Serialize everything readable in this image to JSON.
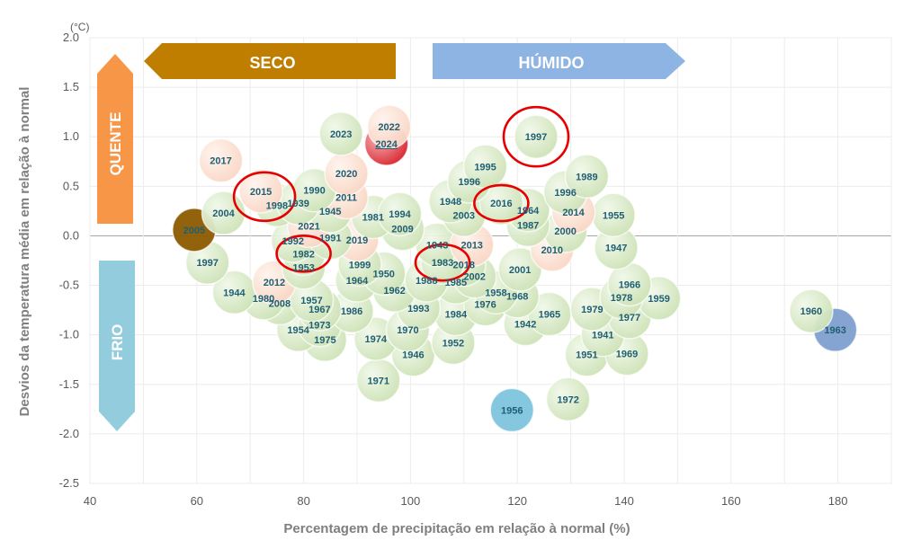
{
  "chart_data": {
    "type": "scatter",
    "title": "",
    "xlabel": "Percentagem de precipitação em relação à normal (%)",
    "ylabel": "Desvios da temperatura média em relação à normal",
    "y_unit": "(°C)",
    "xlim": [
      40,
      190
    ],
    "ylim": [
      -2.5,
      2.0
    ],
    "x_ticks": [
      40,
      60,
      80,
      100,
      120,
      140,
      160,
      180
    ],
    "y_ticks": [
      "2.0",
      "1.5",
      "1.0",
      "0.5",
      "0.0",
      "-0.5",
      "-1.0",
      "-1.5",
      "-2.0",
      "-2.5"
    ],
    "grid": true,
    "quadrant_labels": {
      "dry": "SECO",
      "wet": "HÚMIDO",
      "hot": "QUENTE",
      "cold": "FRIO"
    },
    "colors": {
      "default": "#d4e7c0",
      "warm": "#fbdccd",
      "highlight_2024": "#e4353d",
      "year_2005": "#8c5a00",
      "year_1956": "#7ec4dc",
      "year_1963": "#7f9fcf",
      "circle_mark": "#e60000",
      "dry_arrow": "#bf7e00",
      "wet_arrow": "#8db4e2",
      "hot_arrow": "#f79646",
      "cold_arrow": "#93cddd"
    },
    "points": [
      {
        "year": "2022",
        "x": 96,
        "y": 1.1,
        "style": "warm"
      },
      {
        "year": "2024",
        "x": 95.5,
        "y": 0.93,
        "style": "highlight"
      },
      {
        "year": "2023",
        "x": 87,
        "y": 1.03,
        "style": "default"
      },
      {
        "year": "1997",
        "x": 123.5,
        "y": 1.0,
        "style": "default",
        "circled": true
      },
      {
        "year": "2017",
        "x": 64.5,
        "y": 0.76,
        "style": "warm"
      },
      {
        "year": "1995",
        "x": 114,
        "y": 0.7,
        "style": "default"
      },
      {
        "year": "1989",
        "x": 133,
        "y": 0.6,
        "style": "default"
      },
      {
        "year": "2020",
        "x": 88,
        "y": 0.63,
        "style": "warm"
      },
      {
        "year": "1996",
        "x": 111,
        "y": 0.55,
        "style": "default"
      },
      {
        "year": "1996",
        "x": 129,
        "y": 0.44,
        "style": "default"
      },
      {
        "year": "1990",
        "x": 82,
        "y": 0.46,
        "style": "default"
      },
      {
        "year": "2015",
        "x": 72,
        "y": 0.45,
        "style": "warm",
        "circled": true
      },
      {
        "year": "2011",
        "x": 88,
        "y": 0.39,
        "style": "warm"
      },
      {
        "year": "1998",
        "x": 75,
        "y": 0.31,
        "style": "default"
      },
      {
        "year": "1939",
        "x": 79,
        "y": 0.33,
        "style": "default"
      },
      {
        "year": "1948",
        "x": 107.5,
        "y": 0.35,
        "style": "default"
      },
      {
        "year": "2016",
        "x": 117,
        "y": 0.33,
        "style": "default",
        "circled": true
      },
      {
        "year": "1945",
        "x": 85,
        "y": 0.25,
        "style": "default"
      },
      {
        "year": "2004",
        "x": 65,
        "y": 0.23,
        "style": "default"
      },
      {
        "year": "1964",
        "x": 122,
        "y": 0.26,
        "style": "default"
      },
      {
        "year": "2014",
        "x": 130.5,
        "y": 0.24,
        "style": "warm"
      },
      {
        "year": "1955",
        "x": 138,
        "y": 0.21,
        "style": "default"
      },
      {
        "year": "2003",
        "x": 110,
        "y": 0.21,
        "style": "default"
      },
      {
        "year": "1994",
        "x": 98,
        "y": 0.22,
        "style": "default"
      },
      {
        "year": "1981",
        "x": 93,
        "y": 0.19,
        "style": "default"
      },
      {
        "year": "1987",
        "x": 122,
        "y": 0.11,
        "style": "default"
      },
      {
        "year": "2021",
        "x": 81,
        "y": 0.1,
        "style": "warm"
      },
      {
        "year": "2009",
        "x": 98.5,
        "y": 0.07,
        "style": "default"
      },
      {
        "year": "2000",
        "x": 129,
        "y": 0.05,
        "style": "default"
      },
      {
        "year": "2005",
        "x": 59.5,
        "y": 0.06,
        "style": "year_2005"
      },
      {
        "year": "1991",
        "x": 85,
        "y": -0.02,
        "style": "default"
      },
      {
        "year": "2019",
        "x": 90,
        "y": -0.04,
        "style": "warm"
      },
      {
        "year": "1992",
        "x": 78,
        "y": -0.05,
        "style": "default"
      },
      {
        "year": "1943",
        "x": 105,
        "y": -0.09,
        "style": "default"
      },
      {
        "year": "2013",
        "x": 111.5,
        "y": -0.09,
        "style": "warm"
      },
      {
        "year": "1947",
        "x": 138.5,
        "y": -0.12,
        "style": "default"
      },
      {
        "year": "2010",
        "x": 126.5,
        "y": -0.14,
        "style": "warm"
      },
      {
        "year": "1982",
        "x": 80,
        "y": -0.18,
        "style": "default",
        "circled": true
      },
      {
        "year": "1997",
        "x": 62,
        "y": -0.27,
        "style": "default"
      },
      {
        "year": "1983",
        "x": 106,
        "y": -0.27,
        "style": "default",
        "circled": true
      },
      {
        "year": "2018",
        "x": 110,
        "y": -0.29,
        "style": "default"
      },
      {
        "year": "1999",
        "x": 90.5,
        "y": -0.29,
        "style": "default"
      },
      {
        "year": "1953",
        "x": 80,
        "y": -0.32,
        "style": "default"
      },
      {
        "year": "2001",
        "x": 120.5,
        "y": -0.34,
        "style": "default"
      },
      {
        "year": "1950",
        "x": 95,
        "y": -0.38,
        "style": "default"
      },
      {
        "year": "2002",
        "x": 112,
        "y": -0.41,
        "style": "default"
      },
      {
        "year": "1964",
        "x": 90,
        "y": -0.45,
        "style": "default"
      },
      {
        "year": "1988",
        "x": 103,
        "y": -0.45,
        "style": "default"
      },
      {
        "year": "1985",
        "x": 108.5,
        "y": -0.47,
        "style": "default"
      },
      {
        "year": "2012",
        "x": 74.5,
        "y": -0.47,
        "style": "warm"
      },
      {
        "year": "1966",
        "x": 141,
        "y": -0.49,
        "style": "default"
      },
      {
        "year": "1962",
        "x": 97,
        "y": -0.55,
        "style": "default"
      },
      {
        "year": "1958",
        "x": 116,
        "y": -0.57,
        "style": "default"
      },
      {
        "year": "1944",
        "x": 67,
        "y": -0.57,
        "style": "default"
      },
      {
        "year": "1959",
        "x": 146.5,
        "y": -0.63,
        "style": "default"
      },
      {
        "year": "1968",
        "x": 120,
        "y": -0.61,
        "style": "default"
      },
      {
        "year": "1978",
        "x": 139.5,
        "y": -0.62,
        "style": "default"
      },
      {
        "year": "1980",
        "x": 72.5,
        "y": -0.63,
        "style": "default"
      },
      {
        "year": "1957",
        "x": 81.5,
        "y": -0.65,
        "style": "default"
      },
      {
        "year": "2008",
        "x": 75.5,
        "y": -0.68,
        "style": "default"
      },
      {
        "year": "1976",
        "x": 114,
        "y": -0.69,
        "style": "default"
      },
      {
        "year": "1993",
        "x": 101.5,
        "y": -0.73,
        "style": "default"
      },
      {
        "year": "1979",
        "x": 134,
        "y": -0.74,
        "style": "default"
      },
      {
        "year": "1967",
        "x": 83,
        "y": -0.74,
        "style": "default"
      },
      {
        "year": "1986",
        "x": 89,
        "y": -0.76,
        "style": "default"
      },
      {
        "year": "1984",
        "x": 108.5,
        "y": -0.79,
        "style": "default"
      },
      {
        "year": "1965",
        "x": 126,
        "y": -0.79,
        "style": "default"
      },
      {
        "year": "1977",
        "x": 141,
        "y": -0.82,
        "style": "default"
      },
      {
        "year": "1960",
        "x": 175,
        "y": -0.76,
        "style": "default"
      },
      {
        "year": "1942",
        "x": 121.5,
        "y": -0.89,
        "style": "default"
      },
      {
        "year": "1973",
        "x": 83,
        "y": -0.9,
        "style": "default"
      },
      {
        "year": "1963",
        "x": 179.5,
        "y": -0.95,
        "style": "year_1963"
      },
      {
        "year": "1970",
        "x": 99.5,
        "y": -0.95,
        "style": "default"
      },
      {
        "year": "1954",
        "x": 79,
        "y": -0.95,
        "style": "default"
      },
      {
        "year": "1941",
        "x": 136,
        "y": -1.0,
        "style": "default"
      },
      {
        "year": "1974",
        "x": 93.5,
        "y": -1.04,
        "style": "default"
      },
      {
        "year": "1975",
        "x": 84,
        "y": -1.05,
        "style": "default"
      },
      {
        "year": "1952",
        "x": 108,
        "y": -1.08,
        "style": "default"
      },
      {
        "year": "1946",
        "x": 100.5,
        "y": -1.2,
        "style": "default"
      },
      {
        "year": "1951",
        "x": 133,
        "y": -1.2,
        "style": "default"
      },
      {
        "year": "1969",
        "x": 140.5,
        "y": -1.19,
        "style": "default"
      },
      {
        "year": "1971",
        "x": 94,
        "y": -1.46,
        "style": "default"
      },
      {
        "year": "1972",
        "x": 129.5,
        "y": -1.65,
        "style": "default"
      },
      {
        "year": "1956",
        "x": 119,
        "y": -1.76,
        "style": "year_1956"
      }
    ]
  }
}
